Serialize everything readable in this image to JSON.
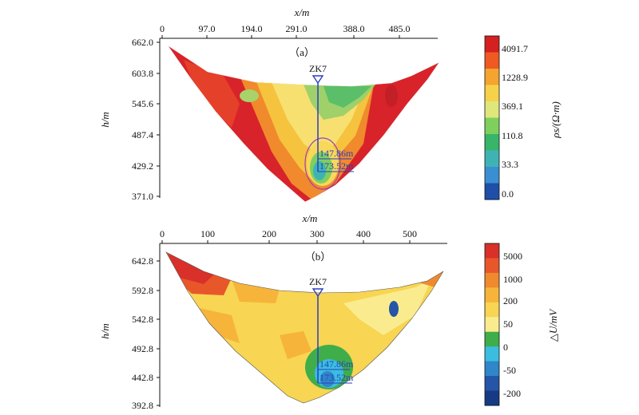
{
  "chart_data": [
    {
      "type": "heatmap",
      "panel_label": "（a）",
      "xlabel": "x/m",
      "ylabel": "h/m",
      "x_ticks": [
        "0",
        "97.0",
        "194.0",
        "291.0",
        "388.0",
        "485.0"
      ],
      "y_ticks": [
        "662.0",
        "603.8",
        "545.6",
        "487.4",
        "429.2",
        "371.0"
      ],
      "borehole": {
        "name": "ZK7",
        "x": 291,
        "depths": [
          "147.86m",
          "173.52m"
        ]
      },
      "colorbar": {
        "title": "ρs/(Ω·m)",
        "labels": [
          "4091.7",
          "1228.9",
          "369.1",
          "110.8",
          "33.3",
          "0.0"
        ],
        "colors": [
          "#d42020",
          "#ee5a22",
          "#f5a430",
          "#f6d24a",
          "#dfe77a",
          "#7fcf5e",
          "#38b56a",
          "#3fb3b4",
          "#3a8fd2",
          "#1f4fa8"
        ]
      }
    },
    {
      "type": "heatmap",
      "panel_label": "（b）",
      "xlabel": "x/m",
      "ylabel": "h/m",
      "x_ticks": [
        "0",
        "100",
        "200",
        "300",
        "400",
        "500"
      ],
      "y_ticks": [
        "642.8",
        "592.8",
        "542.8",
        "492.8",
        "442.8",
        "392.8"
      ],
      "borehole": {
        "name": "ZK7",
        "x": 300,
        "depths": [
          "147.86m",
          "173.52m"
        ]
      },
      "colorbar": {
        "title": "△U/mV",
        "labels": [
          "5000",
          "1000",
          "200",
          "50",
          "0",
          "-50",
          "-200"
        ],
        "colors": [
          "#d9302a",
          "#e8572a",
          "#f08a2e",
          "#f6b43a",
          "#f8d552",
          "#faec8e",
          "#3fae4a",
          "#3bbde0",
          "#2f86c9",
          "#2455a6",
          "#173a84"
        ]
      }
    }
  ]
}
